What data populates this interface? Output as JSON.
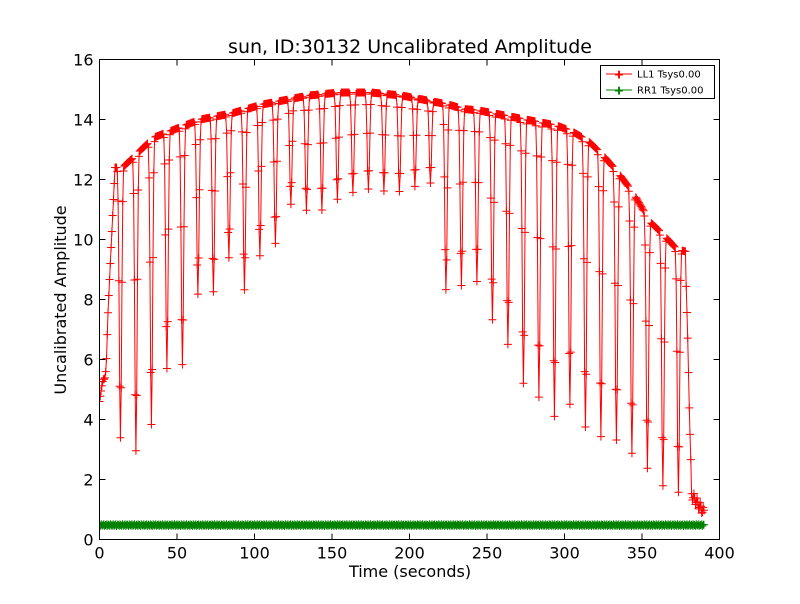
{
  "chart_data": {
    "type": "line",
    "title": "sun, ID:30132 Uncalibrated Amplitude",
    "xlabel": "Time (seconds)",
    "ylabel": "Uncalibrated Amplitude",
    "xlim": [
      0,
      400
    ],
    "ylim": [
      0,
      16
    ],
    "xticks": [
      "0",
      "50",
      "100",
      "150",
      "200",
      "250",
      "300",
      "350",
      "400"
    ],
    "yticks": [
      "0",
      "2",
      "4",
      "6",
      "8",
      "10",
      "12",
      "14",
      "16"
    ],
    "grid": false,
    "legend_position": "top-right",
    "series": [
      {
        "name": "LL1 Tsys0.00",
        "color": "#ff0000",
        "marker": "+",
        "envelope": {
          "x": [
            0,
            4,
            10,
            15,
            25,
            35,
            45,
            55,
            65,
            75,
            85,
            95,
            105,
            115,
            125,
            135,
            145,
            155,
            165,
            175,
            185,
            195,
            205,
            215,
            225,
            235,
            245,
            255,
            265,
            275,
            285,
            295,
            305,
            315,
            325,
            335,
            345,
            355,
            365,
            372,
            378,
            382,
            386,
            390
          ],
          "peak": [
            4.6,
            6.0,
            12.4,
            12.4,
            12.9,
            13.4,
            13.6,
            13.8,
            14.0,
            14.1,
            14.2,
            14.35,
            14.5,
            14.6,
            14.7,
            14.8,
            14.85,
            14.9,
            14.9,
            14.9,
            14.85,
            14.8,
            14.7,
            14.6,
            14.5,
            14.35,
            14.3,
            14.2,
            14.1,
            14.0,
            13.9,
            13.8,
            13.6,
            13.3,
            12.8,
            12.2,
            11.5,
            10.6,
            10.1,
            9.7,
            9.6,
            1.5,
            1.2,
            0.9
          ],
          "trough": [
            4.6,
            5.5,
            3.6,
            3.3,
            2.9,
            4.0,
            6.0,
            5.8,
            8.6,
            8.2,
            9.6,
            8.1,
            9.7,
            9.9,
            11.4,
            10.9,
            11.0,
            11.4,
            11.6,
            11.7,
            11.6,
            11.6,
            11.8,
            11.9,
            7.7,
            8.6,
            8.6,
            7.1,
            6.4,
            5.0,
            4.7,
            4.0,
            4.6,
            3.6,
            3.4,
            3.3,
            2.8,
            2.3,
            1.7,
            1.6,
            1.5,
            1.5,
            1.2,
            0.9
          ]
        }
      },
      {
        "name": "RR1 Tsys0.00",
        "color": "#008000",
        "marker": "+",
        "x": [
          0,
          390
        ],
        "values": [
          0.48,
          0.48
        ]
      }
    ]
  }
}
